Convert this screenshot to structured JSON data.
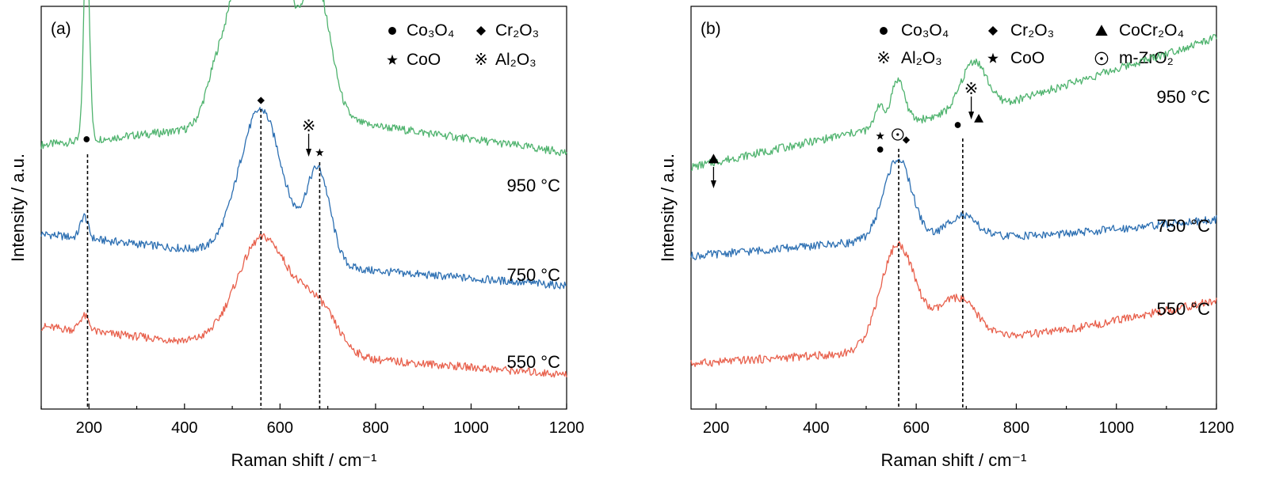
{
  "colors": {
    "c550": "#e8604c",
    "c750": "#2c6fb2",
    "c950": "#4fb36e"
  },
  "chart_data": [
    {
      "type": "line",
      "panel_label": "(a)",
      "xlabel": "Raman shift / cm⁻¹",
      "ylabel": "Intensity / a.u.",
      "xlim": [
        100,
        1200
      ],
      "xticks": [
        "200",
        "400",
        "600",
        "800",
        "1000",
        "1200"
      ],
      "grid": false,
      "legend": [
        {
          "marker": "circle",
          "label": "Co₃O₄"
        },
        {
          "marker": "diamond",
          "label": "Cr₂O₃"
        },
        {
          "marker": "star",
          "label": "CoO"
        },
        {
          "marker": "reference-mark",
          "label": "Al₂O₃"
        }
      ],
      "series": [
        {
          "label": "950 °C",
          "color_key": "c950",
          "baseline": [
            [
              100,
              0.68
            ],
            [
              400,
              0.72
            ],
            [
              700,
              0.75
            ],
            [
              1200,
              0.66
            ]
          ],
          "peaks": [
            [
              195,
              0.55,
              6
            ],
            [
              560,
              0.95,
              40
            ],
            [
              470,
              0.14,
              25
            ],
            [
              675,
              0.36,
              30
            ]
          ]
        },
        {
          "label": "750 °C",
          "color_key": "c750",
          "baseline": [
            [
              100,
              0.44
            ],
            [
              400,
              0.4
            ],
            [
              800,
              0.34
            ],
            [
              1200,
              0.3
            ]
          ],
          "peaks": [
            [
              190,
              0.06,
              8
            ],
            [
              560,
              0.4,
              45
            ],
            [
              680,
              0.25,
              25
            ]
          ]
        },
        {
          "label": "550 °C",
          "color_key": "c550",
          "baseline": [
            [
              100,
              0.19
            ],
            [
              400,
              0.15
            ],
            [
              800,
              0.1
            ],
            [
              1200,
              0.06
            ]
          ],
          "peaks": [
            [
              190,
              0.04,
              10
            ],
            [
              565,
              0.3,
              55
            ],
            [
              680,
              0.12,
              40
            ]
          ]
        }
      ],
      "ref_lines_x": [
        197,
        560,
        683
      ],
      "annotations": [
        {
          "marker": "circle",
          "x": 195
        },
        {
          "marker": "diamond",
          "x": 560
        },
        {
          "marker": "reference-mark",
          "x": 660
        },
        {
          "marker": "star",
          "x": 683
        }
      ]
    },
    {
      "type": "line",
      "panel_label": "(b)",
      "xlabel": "Raman shift / cm⁻¹",
      "ylabel": "Intensity / a.u.",
      "xlim": [
        150,
        1200
      ],
      "xticks": [
        "200",
        "400",
        "600",
        "800",
        "1000",
        "1200"
      ],
      "grid": false,
      "legend": [
        {
          "marker": "circle",
          "label": "Co₃O₄"
        },
        {
          "marker": "diamond",
          "label": "Cr₂O₃"
        },
        {
          "marker": "triangle",
          "label": "CoCr₂O₄"
        },
        {
          "marker": "reference-mark",
          "label": "Al₂O₃"
        },
        {
          "marker": "star",
          "label": "CoO"
        },
        {
          "marker": "circle-dot",
          "label": "m-ZrO₂"
        }
      ],
      "series": [
        {
          "label": "950 °C",
          "color_key": "c950",
          "baseline": [
            [
              150,
              0.62
            ],
            [
              500,
              0.72
            ],
            [
              800,
              0.8
            ],
            [
              1200,
              0.97
            ]
          ],
          "peaks": [
            [
              525,
              0.06,
              8
            ],
            [
              563,
              0.12,
              14
            ],
            [
              715,
              0.13,
              25
            ]
          ]
        },
        {
          "label": "750 °C",
          "color_key": "c750",
          "baseline": [
            [
              150,
              0.38
            ],
            [
              500,
              0.42
            ],
            [
              900,
              0.44
            ],
            [
              1200,
              0.48
            ]
          ],
          "peaks": [
            [
              563,
              0.22,
              28
            ],
            [
              690,
              0.06,
              30
            ]
          ]
        },
        {
          "label": "550 °C",
          "color_key": "c550",
          "baseline": [
            [
              150,
              0.09
            ],
            [
              500,
              0.12
            ],
            [
              900,
              0.18
            ],
            [
              1200,
              0.26
            ]
          ],
          "peaks": [
            [
              563,
              0.28,
              35
            ],
            [
              680,
              0.12,
              40
            ]
          ]
        }
      ],
      "ref_lines_x": [
        565,
        693
      ],
      "annotations": [
        {
          "marker": "triangle",
          "x": 195
        },
        {
          "marker": "star",
          "x": 528
        },
        {
          "marker": "circle",
          "x": 528
        },
        {
          "marker": "circle-dot",
          "x": 563
        },
        {
          "marker": "diamond",
          "x": 580
        },
        {
          "marker": "circle",
          "x": 683
        },
        {
          "marker": "reference-mark",
          "x": 710
        },
        {
          "marker": "triangle",
          "x": 725
        }
      ]
    }
  ]
}
